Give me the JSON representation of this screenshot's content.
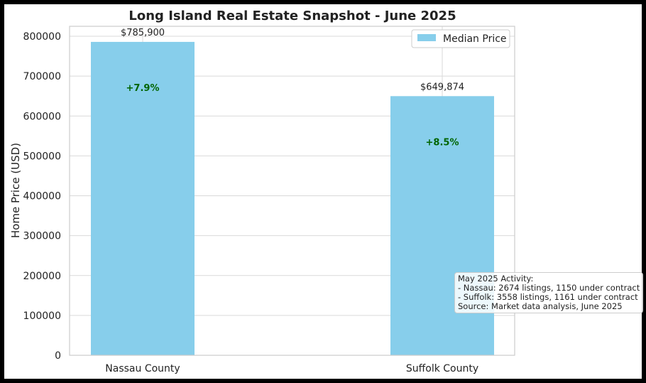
{
  "chart_data": {
    "type": "bar",
    "title": "Long Island Real Estate Snapshot - June 2025",
    "xlabel": "",
    "ylabel": "Home Price (USD)",
    "categories": [
      "Nassau County",
      "Suffolk County"
    ],
    "series": [
      {
        "name": "Median Price",
        "values": [
          785900,
          649874
        ],
        "value_labels": [
          "$785,900",
          "$649,874"
        ],
        "change_labels": [
          "+7.9%",
          "+8.5%"
        ]
      }
    ],
    "ylim": [
      0,
      825000
    ],
    "yticks": [
      0,
      100000,
      200000,
      300000,
      400000,
      500000,
      600000,
      700000,
      800000
    ],
    "ytick_labels": [
      "0",
      "100000",
      "200000",
      "300000",
      "400000",
      "500000",
      "600000",
      "700000",
      "800000"
    ],
    "grid": true,
    "legend_position": "top-right",
    "annotation_lines": [
      "May 2025 Activity:",
      "- Nassau: 2674 listings, 1150 under contract",
      "- Suffolk: 3558 listings, 1161 under contract",
      "Source: Market data analysis, June 2025"
    ],
    "colors": {
      "bar": "#87CEEB",
      "change_text": "#006400",
      "grid": "#d9d9d9"
    }
  }
}
